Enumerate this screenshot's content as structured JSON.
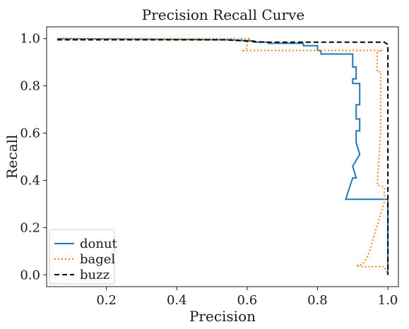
{
  "chart_data": {
    "type": "line",
    "title": "Precision Recall Curve",
    "xlabel": "Precision",
    "ylabel": "Recall",
    "xlim": [
      0.03,
      1.03
    ],
    "ylim": [
      -0.05,
      1.05
    ],
    "xticks": [
      0.2,
      0.4,
      0.6,
      0.8,
      1.0
    ],
    "xtick_labels": [
      "0.2",
      "0.4",
      "0.6",
      "0.8",
      "1.0"
    ],
    "yticks": [
      0.0,
      0.2,
      0.4,
      0.6,
      0.8,
      1.0
    ],
    "ytick_labels": [
      "0.0",
      "0.2",
      "0.4",
      "0.6",
      "0.8",
      "1.0"
    ],
    "grid": false,
    "legend_position": "lower-left",
    "series": [
      {
        "name": "donut",
        "color": "#1f77b4",
        "dash": "solid",
        "x": [
          0.06,
          0.55,
          0.62,
          0.62,
          0.66,
          0.66,
          0.76,
          0.76,
          0.8,
          0.8,
          0.81,
          0.81,
          0.9,
          0.9,
          0.91,
          0.91,
          0.9,
          0.9,
          0.92,
          0.92,
          0.91,
          0.91,
          0.92,
          0.92,
          0.91,
          0.91,
          0.92,
          0.9,
          0.91,
          0.9,
          0.88,
          1.0,
          1.0,
          1.0
        ],
        "y": [
          1.0,
          0.995,
          0.99,
          0.985,
          0.985,
          0.98,
          0.98,
          0.97,
          0.97,
          0.95,
          0.95,
          0.935,
          0.935,
          0.88,
          0.88,
          0.83,
          0.83,
          0.81,
          0.81,
          0.72,
          0.72,
          0.66,
          0.66,
          0.61,
          0.61,
          0.56,
          0.51,
          0.46,
          0.41,
          0.41,
          0.32,
          0.32,
          0.21,
          0.0
        ]
      },
      {
        "name": "bagel",
        "color": "#ff7f0e",
        "dash": "dotted",
        "x": [
          0.06,
          0.61,
          0.6,
          0.6,
          0.59,
          0.98,
          0.97,
          0.97,
          0.98,
          0.98,
          0.97,
          0.99,
          0.99,
          0.98,
          0.97,
          0.96,
          0.95,
          0.94,
          0.93,
          0.92,
          0.91,
          0.92,
          0.99,
          1.0
        ],
        "y": [
          1.0,
          1.0,
          0.99,
          0.96,
          0.95,
          0.95,
          0.94,
          0.86,
          0.86,
          0.62,
          0.38,
          0.37,
          0.31,
          0.26,
          0.21,
          0.16,
          0.11,
          0.07,
          0.05,
          0.04,
          0.04,
          0.035,
          0.035,
          0.0
        ]
      },
      {
        "name": "buzz",
        "color": "#000000",
        "dash": "dashed",
        "x": [
          0.06,
          0.54,
          0.65,
          0.99,
          1.0,
          1.0,
          1.0
        ],
        "y": [
          0.995,
          0.995,
          0.985,
          0.985,
          0.975,
          0.5,
          0.0
        ]
      }
    ]
  }
}
